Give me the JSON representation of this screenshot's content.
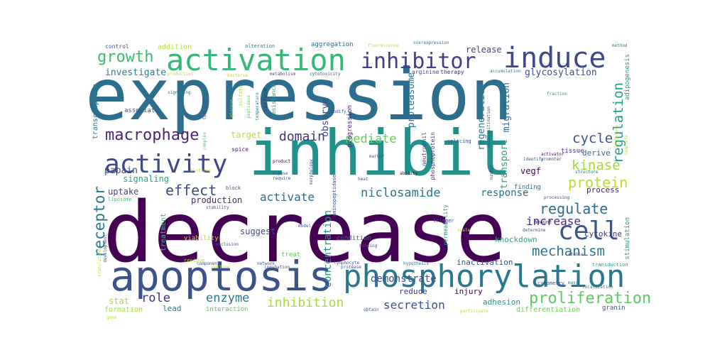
{
  "cloud": {
    "words": [
      {
        "text": "expression",
        "color": "#2d6e8e"
      },
      {
        "text": "decrease",
        "color": "#440154"
      },
      {
        "text": "inhibit",
        "color": "#21918c"
      },
      {
        "text": "apoptosis",
        "color": "#3b528b"
      },
      {
        "text": "phosphorylation",
        "color": "#2a788e"
      },
      {
        "text": "activation",
        "color": "#35b779"
      },
      {
        "text": "induce",
        "color": "#3e4a89"
      },
      {
        "text": "inhibitor",
        "color": "#433e85"
      },
      {
        "text": "activity",
        "color": "#404688"
      },
      {
        "text": "cell",
        "color": "#39568c"
      },
      {
        "text": "macrophage",
        "color": "#482677"
      },
      {
        "text": "growth",
        "color": "#3cbb75"
      },
      {
        "text": "regulation",
        "color": "#1f9e89"
      },
      {
        "text": "proliferation",
        "color": "#5ec962"
      },
      {
        "text": "mechanism",
        "color": "#2c728e"
      },
      {
        "text": "receptor",
        "color": "#29798e"
      },
      {
        "text": "effect",
        "color": "#3f4788"
      },
      {
        "text": "regulate",
        "color": "#2e6d8e"
      },
      {
        "text": "protein",
        "color": "#b8de29"
      },
      {
        "text": "kinase",
        "color": "#a0da39"
      },
      {
        "text": "domain",
        "color": "#46337e"
      },
      {
        "text": "niclosamide",
        "color": "#2c728e"
      },
      {
        "text": "activate",
        "color": "#31688e"
      },
      {
        "text": "inhibition",
        "color": "#a8db34"
      },
      {
        "text": "cycle",
        "color": "#3a548c"
      },
      {
        "text": "increase",
        "color": "#472d7b"
      },
      {
        "text": "secretion",
        "color": "#3d4e8a"
      },
      {
        "text": "enzyme",
        "color": "#2a768e"
      },
      {
        "text": "mediate",
        "color": "#65cb5e"
      },
      {
        "text": "role",
        "color": "#472c7a"
      },
      {
        "text": "response",
        "color": "#2c728e"
      },
      {
        "text": "concentration",
        "color": "#1f988b"
      },
      {
        "text": "demonstrate",
        "color": "#3b528b"
      },
      {
        "text": "investigate",
        "color": "#277f8e"
      },
      {
        "text": "observe",
        "color": "#3f4889"
      },
      {
        "text": "proteasome",
        "color": "#2c738e"
      },
      {
        "text": "regeneration",
        "color": "#2a788e"
      },
      {
        "text": "transport",
        "color": "#20a386"
      },
      {
        "text": "migration",
        "color": "#31688e"
      },
      {
        "text": "glycosylation",
        "color": "#3b528b"
      },
      {
        "text": "release",
        "color": "#404387"
      },
      {
        "text": "papain",
        "color": "#3d4d8a"
      },
      {
        "text": "uptake",
        "color": "#414487"
      },
      {
        "text": "signaling",
        "color": "#22a884"
      },
      {
        "text": "production",
        "color": "#482979"
      },
      {
        "text": "suggest",
        "color": "#3e4a89"
      },
      {
        "text": "target",
        "color": "#b8de29"
      },
      {
        "text": "vegf",
        "color": "#440154"
      },
      {
        "text": "cytokine",
        "color": "#46307e"
      },
      {
        "text": "process",
        "color": "#482173"
      },
      {
        "text": "derive",
        "color": "#31688e"
      },
      {
        "text": "knockdown",
        "color": "#27ad81"
      },
      {
        "text": "inactivation",
        "color": "#3b528b"
      },
      {
        "text": "reduce",
        "color": "#443983"
      },
      {
        "text": "injury",
        "color": "#440154"
      },
      {
        "text": "adhesion",
        "color": "#21918c"
      },
      {
        "text": "stat",
        "color": "#a5db36"
      },
      {
        "text": "lead",
        "color": "#2a788e"
      },
      {
        "text": "formation",
        "color": "#a5db36"
      },
      {
        "text": "interaction",
        "color": "#5ec962"
      },
      {
        "text": "differentiation",
        "color": "#6ece58"
      },
      {
        "text": "granin",
        "color": "#3b528b"
      },
      {
        "text": "treatment",
        "color": "#3dbc74"
      },
      {
        "text": "viability",
        "color": "#b5de2b"
      },
      {
        "text": "transcription",
        "color": "#2a788e"
      },
      {
        "text": "associate",
        "color": "#38598c"
      },
      {
        "text": "addition",
        "color": "#b8de29"
      },
      {
        "text": "aggregation",
        "color": "#31688e"
      },
      {
        "text": "adipogenesis",
        "color": "#1fa187"
      },
      {
        "text": "progression",
        "color": "#482576"
      },
      {
        "text": "stimulation",
        "color": "#1f9e89"
      },
      {
        "text": "condition",
        "color": "#2e6e8e"
      },
      {
        "text": "tissue",
        "color": "#46327e"
      },
      {
        "text": "splicing",
        "color": "#3b528b"
      },
      {
        "text": "cytometry",
        "color": "#3b528b"
      },
      {
        "text": "transduction",
        "color": "#1f9e89"
      },
      {
        "text": "permeability",
        "color": "#20a386"
      },
      {
        "text": "neutrophil",
        "color": "#3e4a89"
      },
      {
        "text": "phosphoprotein",
        "color": "#453781"
      },
      {
        "text": "aminopeptidase",
        "color": "#3b528b"
      },
      {
        "text": "spice",
        "color": "#481a6c"
      },
      {
        "text": "sulfate",
        "color": "#aadc32"
      },
      {
        "text": "surface",
        "color": "#472f7d"
      },
      {
        "text": "resistance",
        "color": "#1fa088"
      },
      {
        "text": "arginine",
        "color": "#3f4889"
      },
      {
        "text": "therapy",
        "color": "#482475"
      },
      {
        "text": "overexpression",
        "color": "#2c728e"
      },
      {
        "text": "finding",
        "color": "#2d708e"
      },
      {
        "text": "trigger",
        "color": "#3b528b"
      },
      {
        "text": "lymphocyte",
        "color": "#3b528b"
      },
      {
        "text": "amount",
        "color": "#481f70"
      },
      {
        "text": "block",
        "color": "#3b528b"
      },
      {
        "text": "liposome",
        "color": "#4ac16d"
      },
      {
        "text": "component",
        "color": "#3b528b"
      },
      {
        "text": "network",
        "color": "#3b528b"
      },
      {
        "text": "treat",
        "color": "#5ec962"
      },
      {
        "text": "hypothesis",
        "color": "#2e6e8e"
      },
      {
        "text": "activator",
        "color": "#440154"
      },
      {
        "text": "promoter",
        "color": "#3b528b"
      },
      {
        "text": "identify",
        "color": "#3b528b"
      },
      {
        "text": "control",
        "color": "#3b528b"
      },
      {
        "text": "alteration",
        "color": "#2a788e"
      },
      {
        "text": "fluorescence",
        "color": "#b8de29"
      },
      {
        "text": "method",
        "color": "#2a788e"
      },
      {
        "text": "accumulation",
        "color": "#2a788e"
      },
      {
        "text": "deubiquitination",
        "color": "#3b528b"
      },
      {
        "text": "metabolism",
        "color": "#3b528b"
      },
      {
        "text": "cytotoxicity",
        "color": "#3b528b"
      },
      {
        "text": "modify",
        "color": "#3b528b"
      },
      {
        "text": "temperature",
        "color": "#2a788e"
      },
      {
        "text": "glucose",
        "color": "#b5de2b"
      },
      {
        "text": "peptidase",
        "color": "#5ec962"
      },
      {
        "text": "complex",
        "color": "#4ac16d"
      },
      {
        "text": "blotting",
        "color": "#b5de2b"
      },
      {
        "text": "function",
        "color": "#3b528b"
      },
      {
        "text": "product",
        "color": "#440154"
      },
      {
        "text": "ability",
        "color": "#440154"
      },
      {
        "text": "morphology",
        "color": "#3b528b"
      },
      {
        "text": "expose",
        "color": "#3b528b"
      },
      {
        "text": "require",
        "color": "#3b528b"
      },
      {
        "text": "heat",
        "color": "#3b528b"
      },
      {
        "text": "number",
        "color": "#3b528b"
      },
      {
        "text": "mass",
        "color": "#2a788e"
      },
      {
        "text": "localization",
        "color": "#2a788e"
      },
      {
        "text": "structure",
        "color": "#2a788e"
      },
      {
        "text": "secretory",
        "color": "#b5de2b"
      },
      {
        "text": "complete",
        "color": "#b5de2b"
      },
      {
        "text": "fraction",
        "color": "#1f9e89"
      },
      {
        "text": "processing",
        "color": "#3b528b"
      },
      {
        "text": "model",
        "color": "#3b528b"
      },
      {
        "text": "binding",
        "color": "#3b528b"
      },
      {
        "text": "conclusion",
        "color": "#3b528b"
      },
      {
        "text": "incubation",
        "color": "#3b528b"
      },
      {
        "text": "protease",
        "color": "#3b528b"
      },
      {
        "text": "culture",
        "color": "#b5de2b"
      },
      {
        "text": "residue",
        "color": "#b5de2b"
      },
      {
        "text": "development",
        "color": "#3b528b"
      },
      {
        "text": "translation",
        "color": "#b5de2b"
      },
      {
        "text": "determine",
        "color": "#3b528b"
      },
      {
        "text": "participate",
        "color": "#b5de2b"
      },
      {
        "text": "stable",
        "color": "#3b528b"
      },
      {
        "text": "obtain",
        "color": "#3b528b"
      },
      {
        "text": "gene",
        "color": "#b5de2b"
      },
      {
        "text": "stability",
        "color": "#3b528b"
      },
      {
        "text": "bacteria",
        "color": "#b5de2b"
      },
      {
        "text": "signaling",
        "color": "#2a788e"
      },
      {
        "text": "production",
        "color": "#b5de2b"
      },
      {
        "text": "marker",
        "color": "#3b528b"
      },
      {
        "text": "scale",
        "color": "#b5de2b"
      }
    ]
  }
}
